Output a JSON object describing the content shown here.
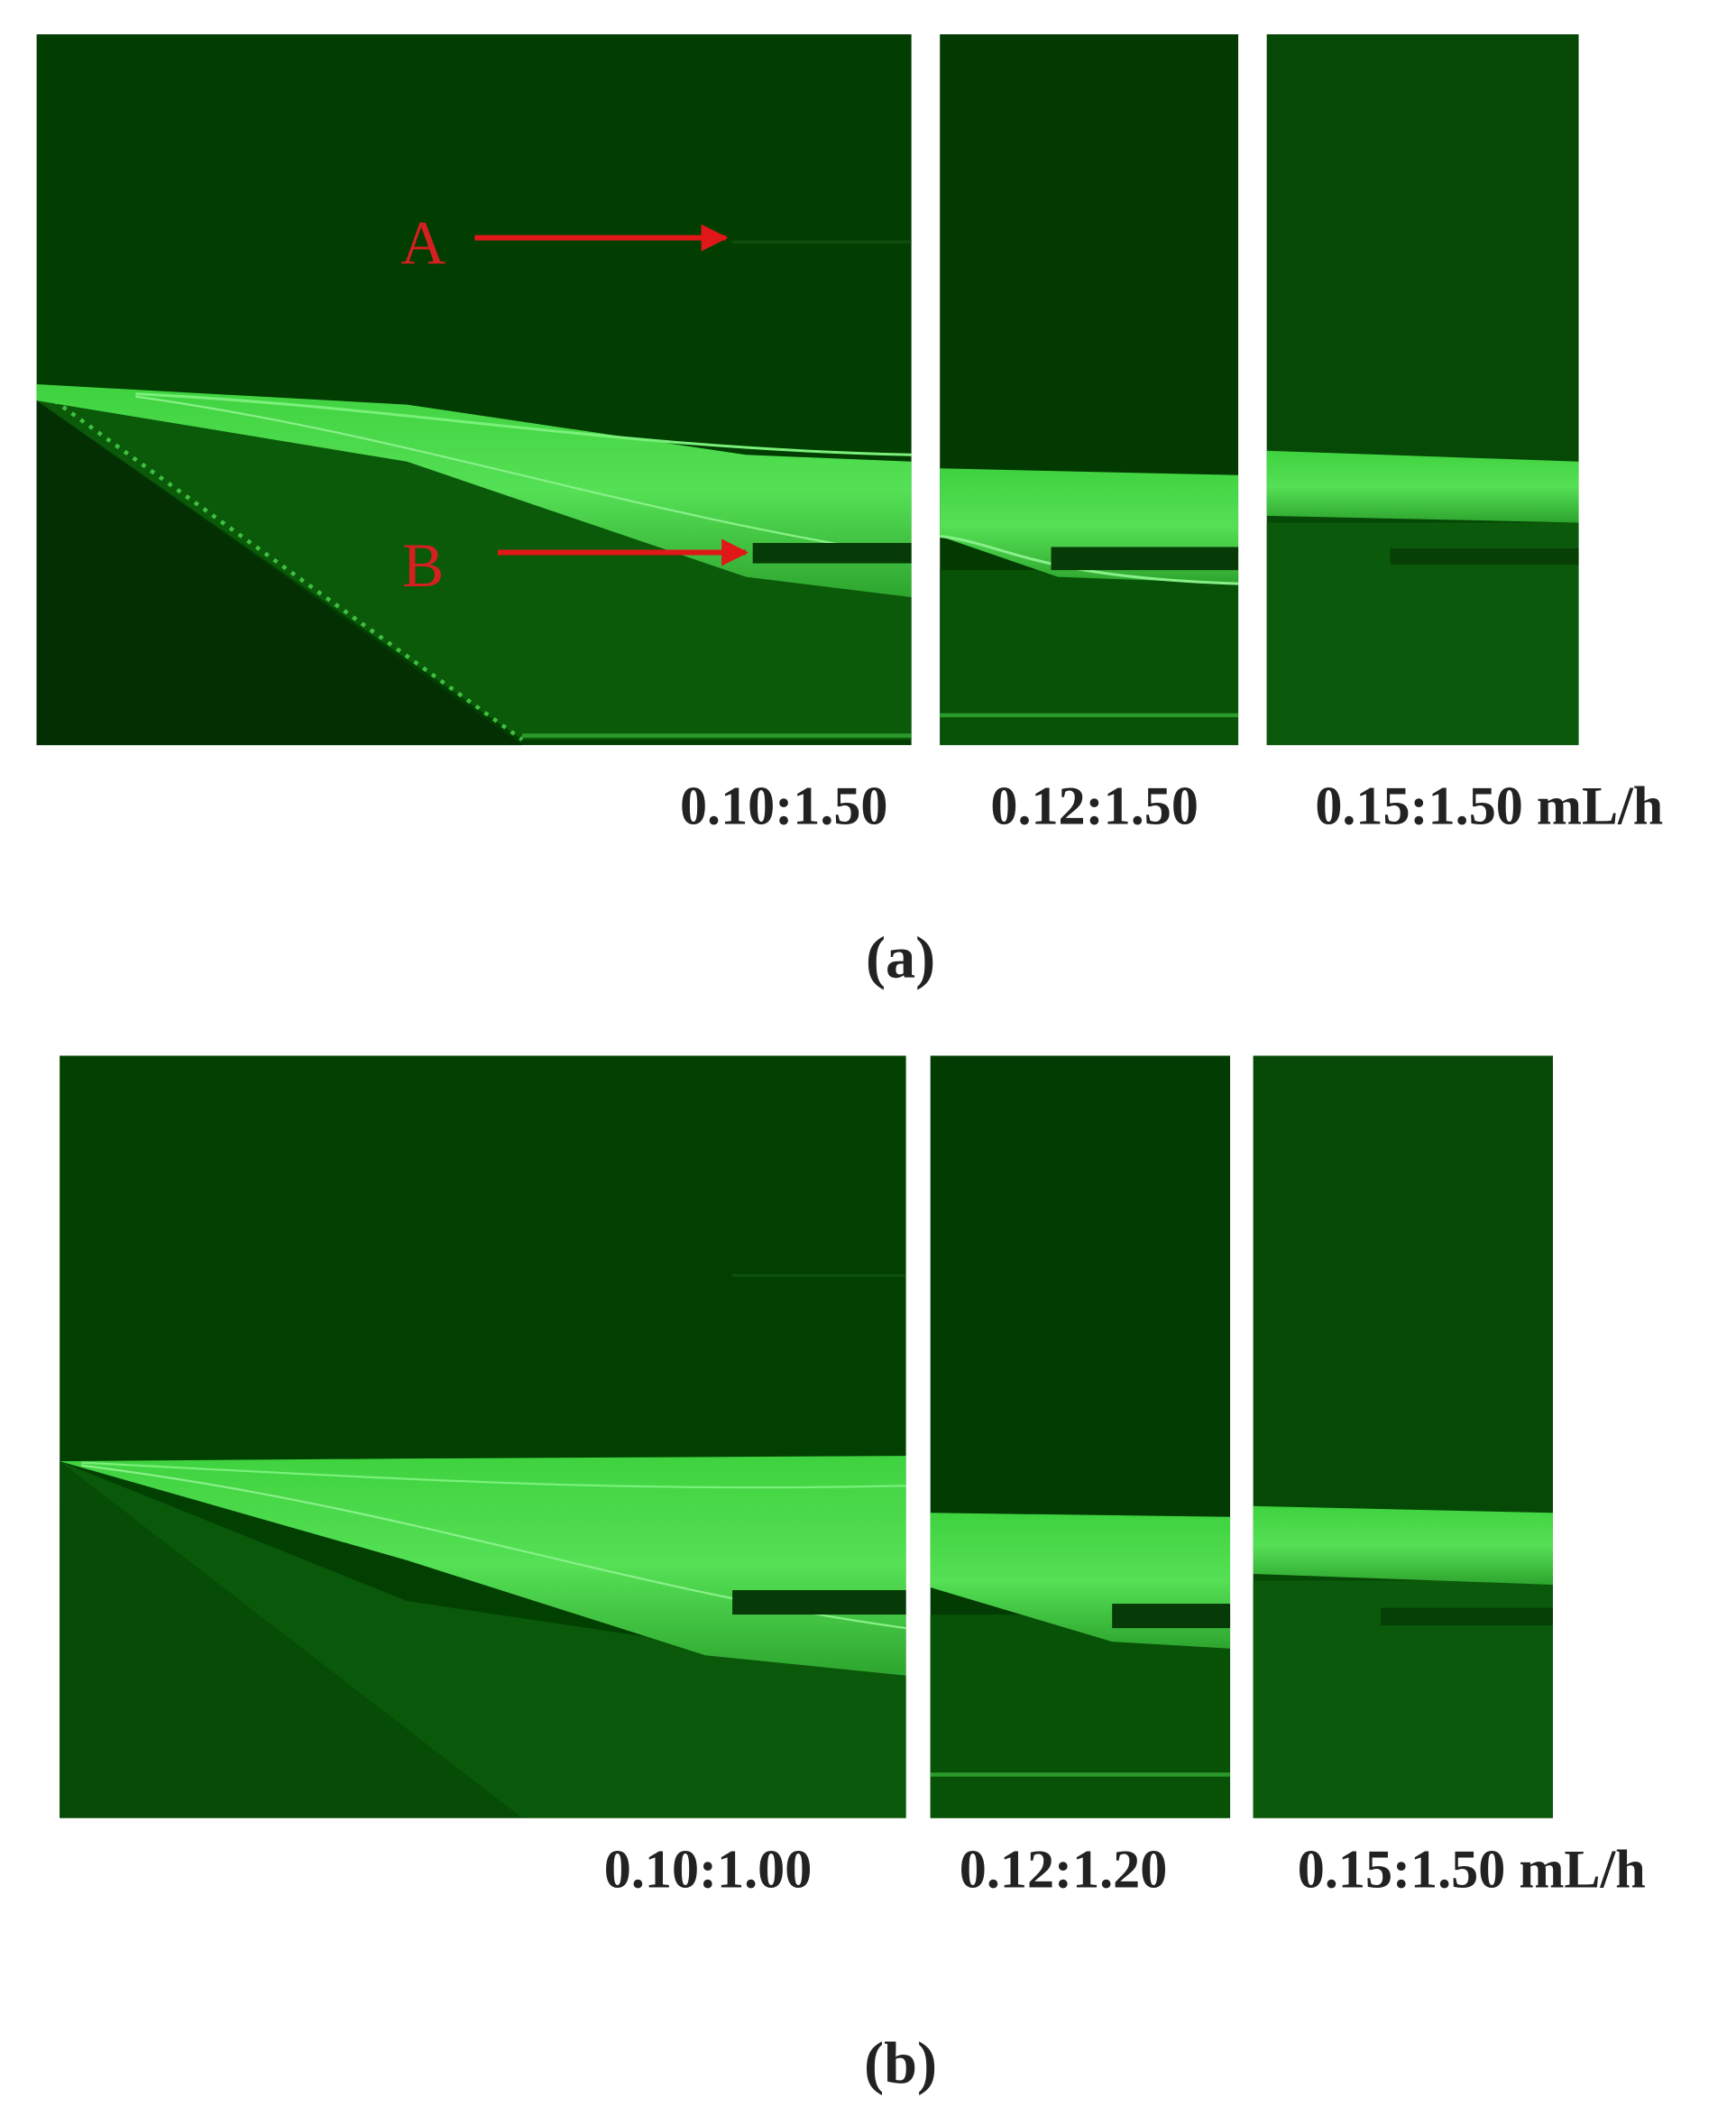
{
  "panels": [
    {
      "label": "(a)",
      "annotations": [
        "A",
        "B"
      ],
      "images": [
        {
          "caption": "0.10:1.50"
        },
        {
          "caption": "0.12:1.50"
        },
        {
          "caption": "0.15:1.50 mL/h"
        }
      ]
    },
    {
      "label": "(b)",
      "images": [
        {
          "caption": "0.10:1.00"
        },
        {
          "caption": "0.12:1.20"
        },
        {
          "caption": "0.15:1.50 mL/h"
        }
      ]
    }
  ]
}
